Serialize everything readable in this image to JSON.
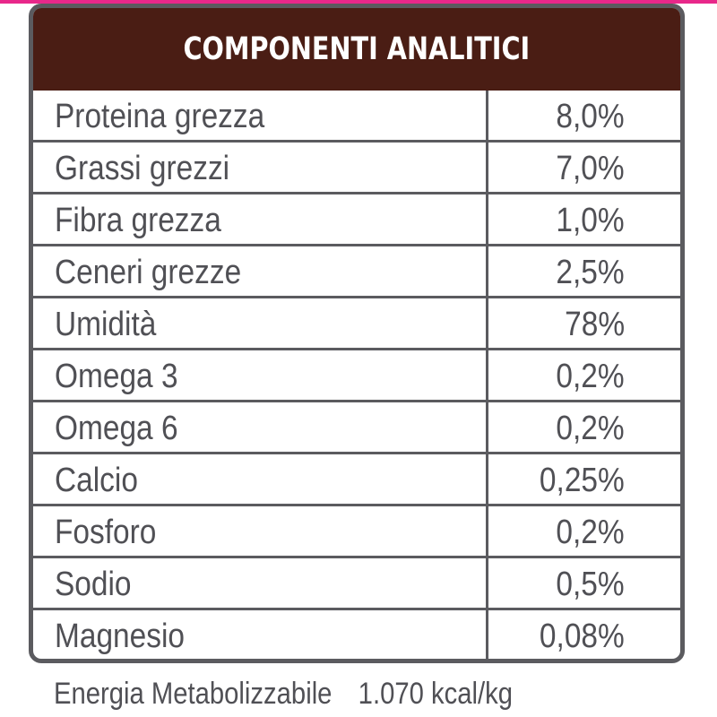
{
  "colors": {
    "header_bg": "#4a1d14",
    "header_text": "#ffffff",
    "border": "#5b5b5f",
    "text": "#505055",
    "accent_pink": "#e8288a"
  },
  "table": {
    "title": "COMPONENTI ANALITICI",
    "rows": [
      {
        "name": "Proteina grezza",
        "value": "8,0%"
      },
      {
        "name": "Grassi grezzi",
        "value": "7,0%"
      },
      {
        "name": "Fibra grezza",
        "value": "1,0%"
      },
      {
        "name": "Ceneri grezze",
        "value": "2,5%"
      },
      {
        "name": "Umidità",
        "value": "78%"
      },
      {
        "name": "Omega 3",
        "value": "0,2%"
      },
      {
        "name": "Omega 6",
        "value": "0,2%"
      },
      {
        "name": "Calcio",
        "value": "0,25%"
      },
      {
        "name": "Fosforo",
        "value": "0,2%"
      },
      {
        "name": "Sodio",
        "value": "0,5%"
      },
      {
        "name": "Magnesio",
        "value": "0,08%"
      }
    ]
  },
  "footer": {
    "label": "Energia Metabolizzabile",
    "value": "1.070 kcal/kg"
  }
}
